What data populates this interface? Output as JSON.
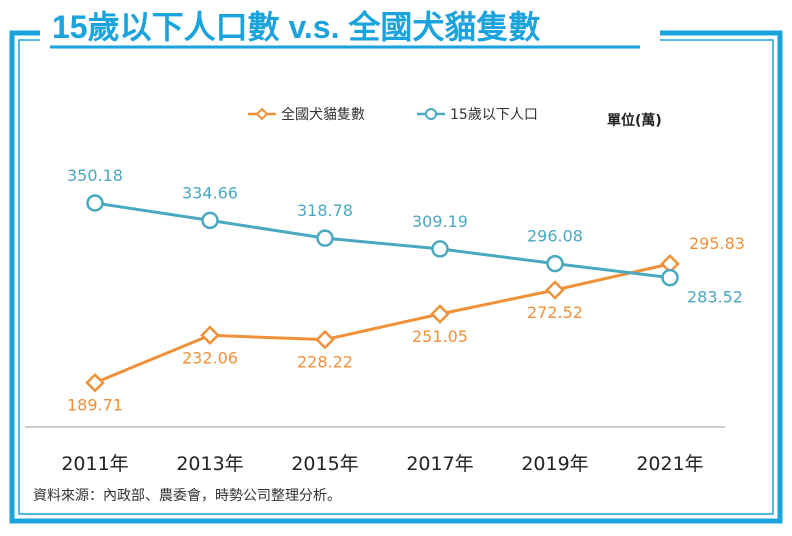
{
  "title": "15歲以下人口數 v.s. 全國犬貓隻數",
  "unit_label": "單位(萬)",
  "source": "資料來源：內政部、農委會，時勢公司整理分析。",
  "colors": {
    "frame": "#1aa3dc",
    "title": "#1aa3dc",
    "orange": "#f0913a",
    "blue": "#4aa8c0",
    "axis": "#cccccc"
  },
  "chart_data": {
    "type": "line",
    "categories": [
      "2011年",
      "2013年",
      "2015年",
      "2017年",
      "2019年",
      "2021年"
    ],
    "series": [
      {
        "name": "全國犬貓隻數",
        "marker": "diamond",
        "color": "#f0913a",
        "values": [
          189.71,
          232.06,
          228.22,
          251.05,
          272.52,
          295.83
        ],
        "labels": [
          "189.71",
          "232.06",
          "228.22",
          "251.05",
          "272.52",
          "295.83"
        ]
      },
      {
        "name": "15歲以下人口",
        "marker": "circle",
        "color": "#4aa8c0",
        "values": [
          350.18,
          334.66,
          318.78,
          309.19,
          296.08,
          283.52
        ],
        "labels": [
          "350.18",
          "334.66",
          "318.78",
          "309.19",
          "296.08",
          "283.52"
        ]
      }
    ],
    "legend_position": "top-right",
    "grid": false,
    "y_axis_visible": false
  }
}
